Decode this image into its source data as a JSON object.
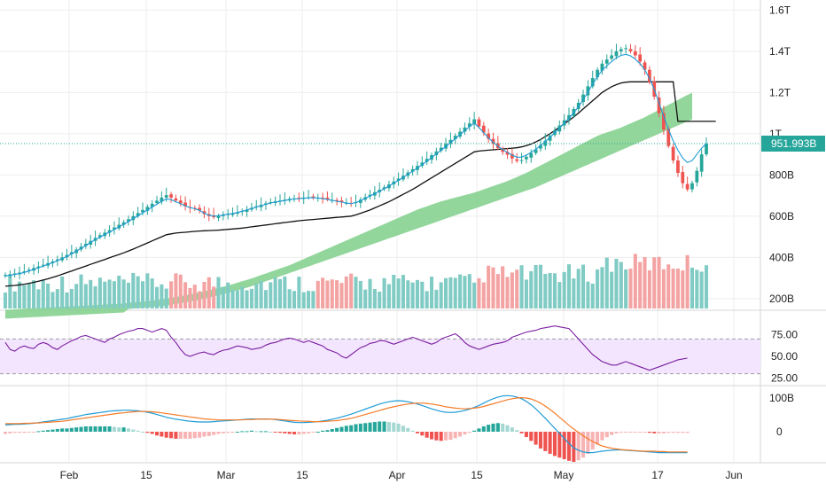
{
  "colors": {
    "up": "#26a69a",
    "down": "#ef5350",
    "vol_up": "#80cbc4",
    "vol_down": "#f4a3a3",
    "cloud": "#7fcf8a",
    "kijun": "#111111",
    "tenkan": "#1f9bd6",
    "rsi_line": "#7b1fa2",
    "rsi_band": "#f3e5fd",
    "macd_line": "#1f9bd6",
    "signal_line": "#f57c2a",
    "price_tag": "#26a69a",
    "grid": "#eeeeee",
    "axis_text": "#222222"
  },
  "chart_data": [
    {
      "type": "candlestick",
      "panel": "price",
      "y_ticks": [
        "1.6T",
        "1.4T",
        "1.2T",
        "1T",
        "800B",
        "600B",
        "400B",
        "200B"
      ],
      "last_price_label": "951.993B",
      "last_price": 952,
      "close": [
        315,
        318,
        322,
        326,
        332,
        340,
        348,
        356,
        364,
        372,
        380,
        390,
        400,
        412,
        425,
        438,
        452,
        466,
        480,
        494,
        508,
        520,
        532,
        545,
        558,
        570,
        585,
        600,
        615,
        630,
        645,
        660,
        675,
        690,
        702,
        690,
        676,
        662,
        648,
        640,
        636,
        628,
        610,
        600,
        595,
        600,
        605,
        610,
        612,
        618,
        625,
        632,
        640,
        648,
        655,
        662,
        668,
        672,
        676,
        680,
        684,
        686,
        688,
        690,
        692,
        694,
        690,
        686,
        682,
        678,
        672,
        668,
        664,
        660,
        668,
        680,
        692,
        704,
        716,
        728,
        740,
        754,
        768,
        782,
        796,
        812,
        828,
        844,
        860,
        878,
        896,
        914,
        932,
        950,
        970,
        990,
        1010,
        1030,
        1050,
        1070,
        1035,
        1005,
        975,
        950,
        930,
        912,
        898,
        880,
        868,
        872,
        888,
        906,
        924,
        945,
        966,
        990,
        1015,
        1040,
        1065,
        1090,
        1120,
        1150,
        1190,
        1230,
        1270,
        1310,
        1340,
        1360,
        1380,
        1400,
        1410,
        1415,
        1400,
        1380,
        1350,
        1310,
        1250,
        1180,
        1100,
        1020,
        940,
        870,
        810,
        760,
        730,
        760,
        820,
        900,
        952
      ],
      "tenkan": [
        310,
        313,
        317,
        321,
        327,
        334,
        342,
        350,
        358,
        366,
        374,
        384,
        394,
        405,
        417,
        430,
        444,
        458,
        472,
        486,
        498,
        511,
        523,
        535,
        548,
        560,
        574,
        588,
        602,
        616,
        630,
        644,
        658,
        672,
        684,
        680,
        670,
        660,
        650,
        642,
        636,
        628,
        614,
        605,
        600,
        602,
        606,
        610,
        613,
        618,
        624,
        630,
        637,
        644,
        651,
        658,
        664,
        668,
        672,
        676,
        680,
        683,
        685,
        687,
        689,
        690,
        688,
        685,
        681,
        677,
        672,
        668,
        664,
        661,
        666,
        676,
        687,
        698,
        710,
        721,
        733,
        746,
        760,
        774,
        788,
        803,
        818,
        834,
        850,
        867,
        884,
        902,
        920,
        938,
        957,
        976,
        996,
        1015,
        1034,
        1052,
        1030,
        1005,
        980,
        958,
        940,
        923,
        910,
        896,
        886,
        886,
        896,
        910,
        925,
        943,
        962,
        983,
        1005,
        1028,
        1052,
        1076,
        1102,
        1130,
        1165,
        1202,
        1240,
        1277,
        1308,
        1330,
        1350,
        1368,
        1380,
        1385,
        1378,
        1362,
        1340,
        1310,
        1268,
        1215,
        1150,
        1085,
        1022,
        965,
        920,
        882,
        860,
        870,
        900,
        930,
        952
      ],
      "kijun": [
        260,
        262,
        264,
        267,
        270,
        274,
        279,
        284,
        290,
        296,
        303,
        310,
        318,
        326,
        334,
        342,
        350,
        358,
        366,
        374,
        382,
        390,
        398,
        406,
        414,
        422,
        431,
        440,
        450,
        460,
        470,
        480,
        490,
        500,
        510,
        514,
        518,
        520,
        522,
        524,
        526,
        528,
        529,
        530,
        531,
        532,
        534,
        536,
        538,
        540,
        542,
        545,
        548,
        551,
        554,
        557,
        560,
        563,
        566,
        569,
        572,
        575,
        578,
        580,
        582,
        584,
        586,
        588,
        590,
        592,
        594,
        596,
        598,
        600,
        606,
        614,
        622,
        630,
        640,
        650,
        660,
        670,
        682,
        694,
        706,
        718,
        730,
        744,
        758,
        772,
        786,
        800,
        814,
        828,
        842,
        856,
        870,
        884,
        898,
        912,
        916,
        918,
        920,
        922,
        924,
        926,
        928,
        930,
        932,
        936,
        942,
        950,
        960,
        972,
        986,
        1000,
        1016,
        1032,
        1048,
        1064,
        1082,
        1100,
        1120,
        1140,
        1160,
        1180,
        1200,
        1215,
        1228,
        1238,
        1246,
        1250,
        1252,
        1252,
        1252,
        1252,
        1252,
        1252,
        1252,
        1252,
        1252,
        1252,
        1060,
        1060,
        1060,
        1060,
        1060,
        1060,
        1060,
        1060,
        1060
      ],
      "cloud_upper": [
        180,
        182,
        184,
        186,
        188,
        190,
        193,
        196,
        200,
        204,
        208,
        212,
        216,
        220,
        225,
        230,
        235,
        240,
        246,
        252,
        258,
        264,
        270,
        277,
        284,
        291,
        298,
        306,
        314,
        322,
        330,
        338,
        346,
        354,
        362,
        372,
        382,
        392,
        402,
        412,
        422,
        432,
        442,
        452,
        462,
        472,
        482,
        492,
        502,
        512,
        522,
        532,
        542,
        552,
        562,
        572,
        582,
        592,
        602,
        612,
        622,
        632,
        640,
        648,
        656,
        664,
        672,
        678,
        684,
        690,
        696,
        702,
        708,
        714,
        722,
        730,
        738,
        746,
        754,
        762,
        770,
        780,
        790,
        800,
        810,
        822,
        834,
        846,
        858,
        870,
        882,
        894,
        906,
        918,
        930,
        942,
        954,
        966,
        978,
        990,
        998,
        1006,
        1014,
        1022,
        1030,
        1040,
        1050,
        1060,
        1070,
        1080,
        1092,
        1104,
        1116,
        1128,
        1140,
        1152,
        1164,
        1176,
        1188,
        1198
      ],
      "cloud_lower": [
        150,
        152,
        154,
        156,
        158,
        160,
        162,
        164,
        166,
        170,
        174,
        178,
        182,
        186,
        190,
        195,
        200,
        205,
        210,
        216,
        222,
        228,
        234,
        240,
        246,
        253,
        260,
        268,
        276,
        284,
        292,
        300,
        308,
        316,
        324,
        332,
        340,
        348,
        356,
        364,
        372,
        380,
        388,
        396,
        404,
        412,
        420,
        428,
        436,
        444,
        452,
        460,
        468,
        476,
        484,
        492,
        500,
        508,
        516,
        524,
        532,
        540,
        548,
        556,
        564,
        572,
        580,
        588,
        596,
        604,
        612,
        620,
        628,
        636,
        644,
        652,
        660,
        668,
        676,
        684,
        692,
        700,
        708,
        716,
        724,
        732,
        740,
        750,
        760,
        770,
        780,
        790,
        800,
        810,
        820,
        830,
        840,
        850,
        860,
        870,
        880,
        890,
        900,
        910,
        920,
        930,
        940,
        950,
        960,
        970,
        980,
        990,
        1000,
        1010,
        1020,
        1030,
        1040,
        1050,
        1060,
        1070
      ]
    },
    {
      "type": "line",
      "panel": "rsi",
      "y_ticks": [
        "75.00",
        "50.00",
        "25.00"
      ],
      "band": [
        30,
        70
      ],
      "values": [
        66,
        58,
        56,
        60,
        62,
        60,
        59,
        64,
        66,
        64,
        60,
        58,
        62,
        65,
        68,
        70,
        73,
        74,
        72,
        70,
        68,
        66,
        70,
        72,
        75,
        77,
        79,
        80,
        82,
        82,
        80,
        78,
        80,
        82,
        80,
        72,
        66,
        58,
        52,
        50,
        52,
        54,
        55,
        53,
        52,
        55,
        57,
        58,
        60,
        62,
        61,
        60,
        58,
        59,
        60,
        63,
        65,
        66,
        68,
        70,
        71,
        70,
        68,
        66,
        68,
        66,
        64,
        62,
        58,
        56,
        54,
        50,
        48,
        52,
        56,
        60,
        62,
        65,
        66,
        68,
        68,
        66,
        64,
        66,
        68,
        70,
        72,
        70,
        68,
        66,
        64,
        66,
        70,
        72,
        74,
        76,
        72,
        66,
        62,
        60,
        58,
        60,
        62,
        64,
        65,
        66,
        68,
        72,
        74,
        76,
        78,
        79,
        80,
        82,
        83,
        84,
        85,
        84,
        83,
        82,
        76,
        70,
        64,
        58,
        52,
        48,
        44,
        42,
        40,
        40,
        42,
        44,
        42,
        40,
        38,
        36,
        34,
        36,
        38,
        40,
        42,
        44,
        46,
        47,
        48
      ],
      "_note": ""
    },
    {
      "type": "macd",
      "panel": "macd",
      "y_ticks": [
        "100B",
        "0"
      ],
      "x_ticks": [
        "Feb",
        "15",
        "Mar",
        "15",
        "Apr",
        "15",
        "May",
        "17",
        "Jun"
      ],
      "macd": [
        20,
        21,
        22,
        22,
        23,
        24,
        25,
        27,
        29,
        31,
        33,
        35,
        37,
        39,
        42,
        45,
        48,
        51,
        53,
        55,
        57,
        59,
        61,
        62,
        63,
        64,
        64,
        63,
        62,
        60,
        58,
        55,
        51,
        47,
        43,
        40,
        37,
        35,
        33,
        31,
        30,
        29,
        29,
        29,
        30,
        31,
        32,
        33,
        34,
        35,
        36,
        37,
        38,
        38,
        38,
        38,
        37,
        36,
        34,
        32,
        30,
        28,
        27,
        27,
        28,
        29,
        30,
        32,
        34,
        37,
        40,
        44,
        48,
        52,
        57,
        62,
        67,
        72,
        77,
        82,
        86,
        89,
        91,
        92,
        91,
        89,
        86,
        82,
        78,
        73,
        68,
        64,
        60,
        58,
        57,
        58,
        60,
        63,
        67,
        72,
        78,
        85,
        92,
        98,
        103,
        106,
        107,
        106,
        103,
        98,
        90,
        80,
        68,
        54,
        40,
        25,
        10,
        -5,
        -20,
        -35,
        -48,
        -55,
        -60,
        -62,
        -62,
        -60,
        -58,
        -56,
        -55,
        -54,
        -54,
        -55,
        -56,
        -57,
        -58,
        -59,
        -60,
        -61,
        -62,
        -62,
        -62,
        -62,
        -62,
        -62,
        -62
      ],
      "signal": [
        24,
        24,
        24,
        24,
        25,
        25,
        26,
        26,
        27,
        28,
        29,
        30,
        31,
        33,
        35,
        37,
        39,
        41,
        43,
        45,
        47,
        49,
        51,
        53,
        55,
        56,
        58,
        59,
        60,
        60,
        60,
        59,
        58,
        56,
        54,
        52,
        50,
        48,
        46,
        44,
        42,
        40,
        38,
        37,
        36,
        35,
        35,
        35,
        35,
        35,
        35,
        36,
        36,
        37,
        37,
        37,
        37,
        37,
        36,
        35,
        34,
        33,
        32,
        31,
        31,
        30,
        30,
        30,
        31,
        32,
        33,
        35,
        37,
        40,
        43,
        47,
        51,
        55,
        59,
        63,
        67,
        71,
        74,
        77,
        80,
        82,
        84,
        85,
        85,
        84,
        82,
        80,
        77,
        74,
        72,
        70,
        69,
        68,
        69,
        70,
        72,
        75,
        79,
        83,
        87,
        91,
        95,
        98,
        100,
        101,
        100,
        97,
        92,
        85,
        76,
        66,
        55,
        43,
        31,
        19,
        8,
        -2,
        -12,
        -21,
        -29,
        -36,
        -42,
        -46,
        -49,
        -51,
        -53,
        -54,
        -55,
        -56,
        -57,
        -58,
        -58,
        -58,
        -59,
        -59,
        -60,
        -60,
        -60,
        -60,
        -60
      ]
    }
  ]
}
